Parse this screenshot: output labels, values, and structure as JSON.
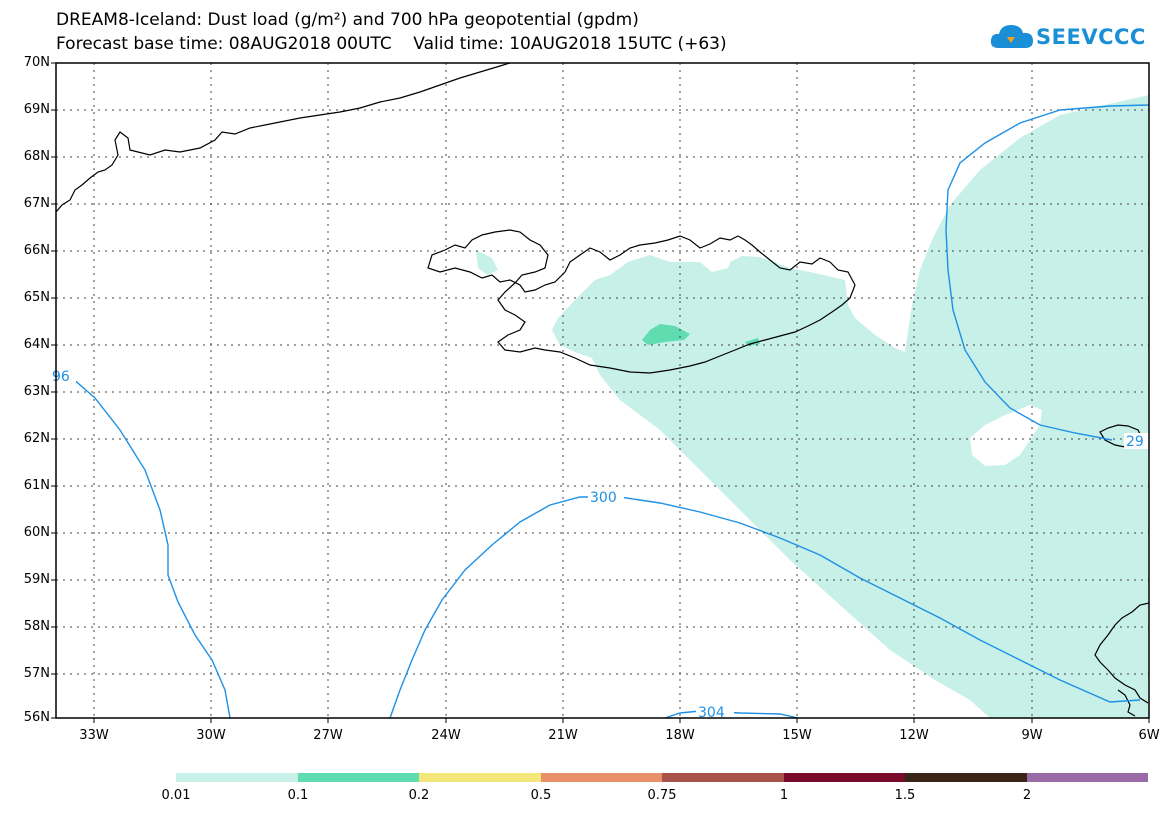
{
  "header": {
    "line1": "DREAM8-Iceland: Dust load (g/m²) and 700 hPa geopotential (gpdm)",
    "line2": "Forecast base time: 08AUG2018 00UTC    Valid time: 10AUG2018 15UTC (+63)"
  },
  "logo": {
    "text": "SEEVCCC",
    "icon": "cloud-icon",
    "color": "#1a8fd6"
  },
  "map": {
    "lat_labels": [
      "70N",
      "69N",
      "68N",
      "67N",
      "66N",
      "65N",
      "64N",
      "63N",
      "62N",
      "61N",
      "60N",
      "59N",
      "58N",
      "57N",
      "56N"
    ],
    "lon_labels": [
      "33W",
      "30W",
      "27W",
      "24W",
      "21W",
      "18W",
      "15W",
      "12W",
      "9W",
      "6W"
    ],
    "contour_labels": {
      "c296": "96",
      "c300": "300",
      "c304": "304",
      "c292": "29"
    },
    "contour_color": "#1e90e6"
  },
  "colorbar": {
    "colors": [
      "#c6f0e8",
      "#5fdcb0",
      "#f3e77a",
      "#e8906a",
      "#a8524a",
      "#7a0a2a",
      "#3a2418",
      "#9a6aa6"
    ],
    "labels": [
      "0.01",
      "0.1",
      "0.2",
      "0.5",
      "0.75",
      "1",
      "1.5",
      "2"
    ]
  }
}
